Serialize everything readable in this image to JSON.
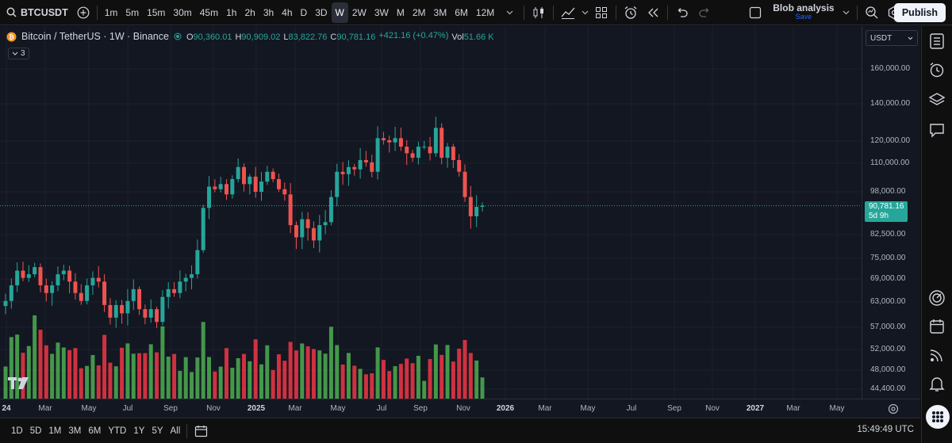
{
  "toolbar": {
    "symbol": "BTCUSDT",
    "timeframes": [
      "1m",
      "5m",
      "15m",
      "30m",
      "45m",
      "1h",
      "2h",
      "3h",
      "4h",
      "D",
      "3D",
      "W",
      "2W",
      "3W",
      "M",
      "2M",
      "3M",
      "6M",
      "12M"
    ],
    "active_timeframe": "W",
    "layout_name": "Blob analysis",
    "layout_save": "Save",
    "publish_label": "Publish"
  },
  "legend": {
    "symbol": "Bitcoin / TetherUS · 1W · Binance",
    "open_label": "O",
    "open": "90,360.01",
    "high_label": "H",
    "high": "90,909.02",
    "low_label": "L",
    "low": "83,822.76",
    "close_label": "C",
    "close": "90,781.16",
    "change": "+421.16 (+0.47%)",
    "vol_label": "Vol",
    "vol": "51.66 K",
    "collapse_count": "3"
  },
  "price_axis": {
    "currency": "USDT",
    "labels": [
      "160,000.00",
      "140,000.00",
      "120,000.00",
      "110,000.00",
      "98,000.00",
      "82,500.00",
      "75,000.00",
      "69,000.00",
      "63,000.00",
      "57,000.00",
      "52,000.00",
      "48,000.00",
      "44,400.00"
    ],
    "last_price": "90,781.16",
    "countdown": "5d 9h"
  },
  "time_axis": {
    "labels": [
      "24",
      "Mar",
      "May",
      "Jul",
      "Sep",
      "Nov",
      "2025",
      "Mar",
      "May",
      "Jul",
      "Sep",
      "Nov",
      "2026",
      "Mar",
      "May",
      "Jul",
      "Sep",
      "Nov",
      "2027",
      "Mar",
      "May"
    ]
  },
  "bottom_bar": {
    "ranges": [
      "1D",
      "5D",
      "1M",
      "3M",
      "6M",
      "YTD",
      "1Y",
      "5Y",
      "All"
    ],
    "clock": "15:49:49 UTC"
  },
  "colors": {
    "up": "#26a69a",
    "down": "#ef5350",
    "vol_up": "#4caf50",
    "vol_down": "#f23645",
    "accent": "#2962ff"
  },
  "chart_data": {
    "type": "candlestick",
    "interval": "1W",
    "y_scale": "log",
    "ylim": [
      42000,
      175000
    ],
    "series_close": [
      62000,
      66000,
      70000,
      68000,
      69000,
      71000,
      66000,
      64000,
      66000,
      69000,
      70000,
      67000,
      64000,
      62000,
      66000,
      68000,
      67000,
      61000,
      58000,
      61000,
      59000,
      62000,
      65000,
      60000,
      58000,
      60000,
      57000,
      63000,
      65000,
      64000,
      67000,
      68000,
      69000,
      76000,
      90000,
      98000,
      97000,
      99000,
      95000,
      101000,
      106000,
      99000,
      102000,
      96000,
      100000,
      104000,
      101000,
      97000,
      95000,
      84000,
      80000,
      86000,
      83000,
      79000,
      84000,
      85000,
      94000,
      104000,
      103000,
      106000,
      105000,
      109000,
      108000,
      104000,
      119000,
      118000,
      117000,
      119000,
      115000,
      112000,
      110000,
      115000,
      115000,
      112000,
      124000,
      110000,
      115000,
      109000,
      104000,
      94000,
      87000,
      90360,
      90781
    ]
  }
}
